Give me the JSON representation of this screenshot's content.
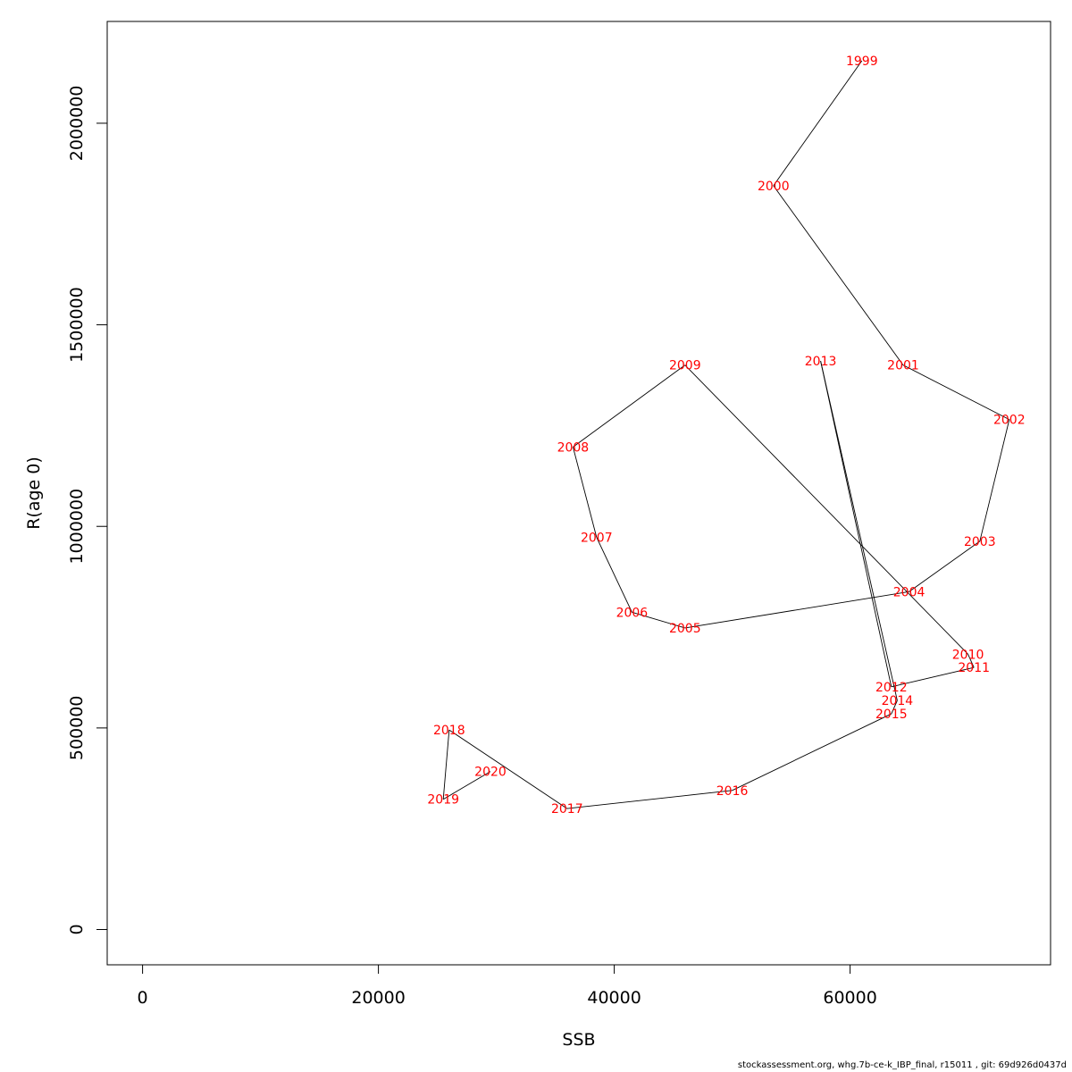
{
  "chart_data": {
    "type": "scatter",
    "subtype": "connected-scatter-with-year-labels",
    "xlabel": "SSB",
    "ylabel": "R(age 0)",
    "xlim": [
      -3000,
      77000
    ],
    "ylim": [
      -87500,
      2252500
    ],
    "x_ticks": [
      0,
      20000,
      40000,
      60000
    ],
    "y_ticks": [
      0,
      500000,
      1000000,
      1500000,
      2000000
    ],
    "label_color": "#ff0000",
    "line_color": "#000000",
    "grid": false,
    "legend": "none",
    "points": [
      {
        "label": "1999",
        "x": 61000,
        "y": 2155000
      },
      {
        "label": "2000",
        "x": 53500,
        "y": 1845000
      },
      {
        "label": "2001",
        "x": 64500,
        "y": 1400000
      },
      {
        "label": "2002",
        "x": 73500,
        "y": 1265000
      },
      {
        "label": "2003",
        "x": 71000,
        "y": 963000
      },
      {
        "label": "2004",
        "x": 65000,
        "y": 838000
      },
      {
        "label": "2005",
        "x": 46000,
        "y": 748000
      },
      {
        "label": "2006",
        "x": 41500,
        "y": 787000
      },
      {
        "label": "2007",
        "x": 38500,
        "y": 973000
      },
      {
        "label": "2008",
        "x": 36500,
        "y": 1197000
      },
      {
        "label": "2009",
        "x": 46000,
        "y": 1400000
      },
      {
        "label": "2010",
        "x": 70000,
        "y": 683000
      },
      {
        "label": "2011",
        "x": 70500,
        "y": 650000
      },
      {
        "label": "2012",
        "x": 63500,
        "y": 602000
      },
      {
        "label": "2013",
        "x": 57500,
        "y": 1410000
      },
      {
        "label": "2014",
        "x": 64000,
        "y": 568000
      },
      {
        "label": "2015",
        "x": 63500,
        "y": 535000
      },
      {
        "label": "2016",
        "x": 50000,
        "y": 345000
      },
      {
        "label": "2017",
        "x": 36000,
        "y": 300000
      },
      {
        "label": "2018",
        "x": 26000,
        "y": 495000
      },
      {
        "label": "2019",
        "x": 25500,
        "y": 323000
      },
      {
        "label": "2020",
        "x": 29500,
        "y": 392000
      }
    ]
  },
  "footer": "stockassessment.org, whg.7b-ce-k_IBP_final, r15011 , git: 69d926d0437d"
}
